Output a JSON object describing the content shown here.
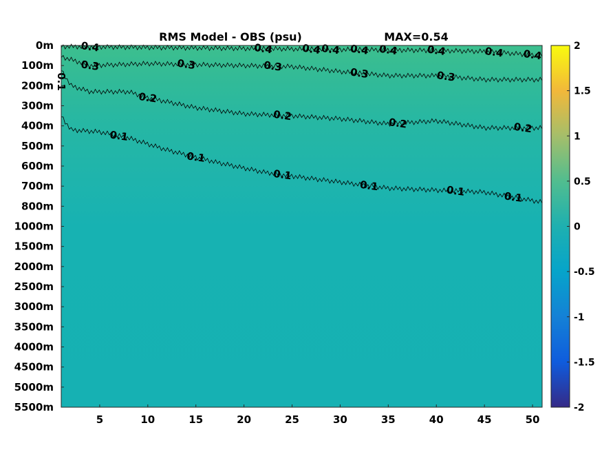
{
  "chart_data": {
    "type": "heatmap",
    "title": "RMS Model - OBS (psu)",
    "max_label": "MAX=0.54",
    "xlabel": "",
    "ylabel": "",
    "x_range": [
      1,
      51
    ],
    "x_ticks": [
      "5",
      "10",
      "15",
      "20",
      "25",
      "30",
      "35",
      "40",
      "45",
      "50"
    ],
    "x_tick_values": [
      5,
      10,
      15,
      20,
      25,
      30,
      35,
      40,
      45,
      50
    ],
    "y_ticks": [
      "0m",
      "100m",
      "200m",
      "300m",
      "400m",
      "500m",
      "600m",
      "700m",
      "800m",
      "1000m",
      "1500m",
      "2000m",
      "2500m",
      "3000m",
      "3500m",
      "4000m",
      "4500m",
      "5000m",
      "5500m"
    ],
    "colorbar": {
      "range": [
        -2,
        2
      ],
      "ticks": [
        "2",
        "1.5",
        "1",
        "0.5",
        "0",
        "-0.5",
        "-1",
        "-1.5",
        "-2"
      ],
      "tick_values": [
        2,
        1.5,
        1,
        0.5,
        0,
        -0.5,
        -1,
        -1.5,
        -2
      ],
      "colormap": "parula"
    },
    "contours": [
      {
        "level": 0.4,
        "label": "0.4",
        "points": [
          [
            1,
            0.05
          ],
          [
            10,
            0.1
          ],
          [
            20,
            0.15
          ],
          [
            30,
            0.2
          ],
          [
            40,
            0.25
          ],
          [
            45,
            0.3
          ],
          [
            51,
            0.5
          ]
        ],
        "label_x": [
          4,
          22,
          27,
          29,
          32,
          35,
          40,
          46,
          50
        ]
      },
      {
        "level": 0.3,
        "label": "0.3",
        "points": [
          [
            1,
            0.55
          ],
          [
            4,
            1.0
          ],
          [
            10,
            0.9
          ],
          [
            20,
            1.0
          ],
          [
            25,
            1.05
          ],
          [
            30,
            1.3
          ],
          [
            35,
            1.5
          ],
          [
            40,
            1.5
          ],
          [
            45,
            1.7
          ],
          [
            51,
            1.7
          ]
        ],
        "label_x": [
          4,
          14,
          23,
          32,
          41
        ]
      },
      {
        "level": 0.2,
        "label": "0.2",
        "points": [
          [
            1,
            1.2
          ],
          [
            2,
            2.0
          ],
          [
            4,
            2.3
          ],
          [
            8,
            2.3
          ],
          [
            10,
            2.6
          ],
          [
            15,
            3.1
          ],
          [
            20,
            3.4
          ],
          [
            25,
            3.5
          ],
          [
            30,
            3.65
          ],
          [
            35,
            3.9
          ],
          [
            40,
            3.75
          ],
          [
            45,
            4.1
          ],
          [
            51,
            4.1
          ]
        ],
        "label_x": [
          10,
          24,
          36,
          49
        ]
      },
      {
        "level": 0.1,
        "label": "0.1",
        "points": [
          [
            1,
            3.5
          ],
          [
            2,
            4.2
          ],
          [
            5,
            4.3
          ],
          [
            8,
            4.6
          ],
          [
            12,
            5.2
          ],
          [
            17,
            5.8
          ],
          [
            22,
            6.3
          ],
          [
            25,
            6.5
          ],
          [
            30,
            6.8
          ],
          [
            35,
            7.1
          ],
          [
            40,
            7.2
          ],
          [
            45,
            7.3
          ],
          [
            51,
            7.8
          ]
        ],
        "label_x": [
          7,
          15,
          24,
          33,
          42,
          48
        ]
      },
      {
        "level": 0.1,
        "label": "0.1",
        "points": [
          [
            1.0,
            0.4
          ],
          [
            1.0,
            3.2
          ]
        ],
        "label_x": [
          1
        ]
      }
    ]
  }
}
